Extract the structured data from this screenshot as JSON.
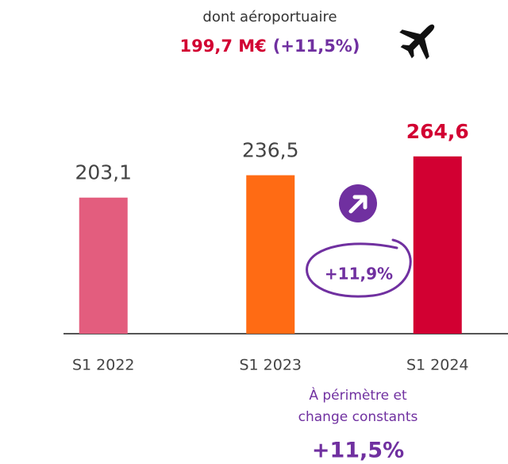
{
  "chart_data": {
    "type": "bar",
    "header": {
      "line1": "dont aéroportuaire",
      "amount": "199,7 M€",
      "growth": "(+11,5%)"
    },
    "categories": [
      "S1 2022",
      "S1 2023",
      "S1 2024"
    ],
    "values": [
      203.1,
      236.5,
      264.6
    ],
    "value_labels": [
      "203,1",
      "236,5",
      "264,6"
    ],
    "colors": [
      "#e35d7e",
      "#ff6b14",
      "#d20032"
    ],
    "ylim": [
      0,
      300
    ],
    "growth_badge": "+11,9%",
    "footnote": {
      "lines": [
        "À périmètre et",
        "change constants"
      ],
      "value": "+11,5%"
    }
  }
}
